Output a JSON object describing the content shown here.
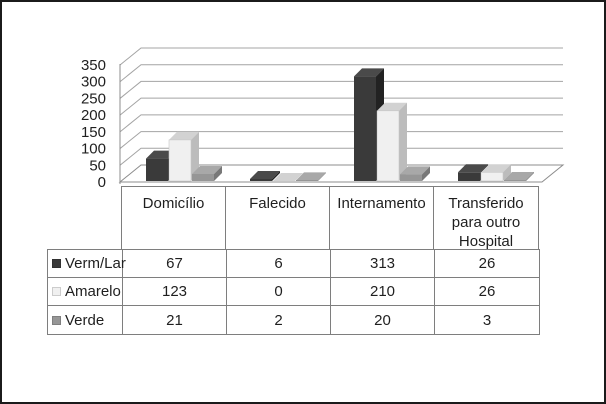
{
  "chart_data": {
    "type": "bar",
    "style": "3d-column",
    "title": "",
    "xlabel": "",
    "ylabel": "",
    "categories": [
      "Domicílio",
      "Falecido",
      "Internamento",
      "Transferido para outro Hospital"
    ],
    "series": [
      {
        "name": "Verm/Lar",
        "values": [
          67,
          6,
          313,
          26
        ],
        "front_color": "#3a3a3a",
        "top_color": "#4a4a4a",
        "side_color": "#222222"
      },
      {
        "name": "Amarelo",
        "values": [
          123,
          0,
          210,
          26
        ],
        "front_color": "#f0f0f0",
        "top_color": "#d2d2d2",
        "side_color": "#bcbcbc"
      },
      {
        "name": "Verde",
        "values": [
          21,
          2,
          20,
          3
        ],
        "front_color": "#969696",
        "top_color": "#a8a8a8",
        "side_color": "#787878"
      }
    ],
    "ylim": [
      0,
      350
    ],
    "yticks": [
      0,
      50,
      100,
      150,
      200,
      250,
      300,
      350
    ],
    "grid": true,
    "legend_position": "table-rows-left",
    "gridline_color": "#a4a4a4",
    "axis_color": "#8c8c8c",
    "tick_label_color": "#1f1f1f",
    "table_border_color": "#7e7e7e",
    "frame_border_color": "#1b1b1b",
    "background_color": "#ffffff"
  }
}
